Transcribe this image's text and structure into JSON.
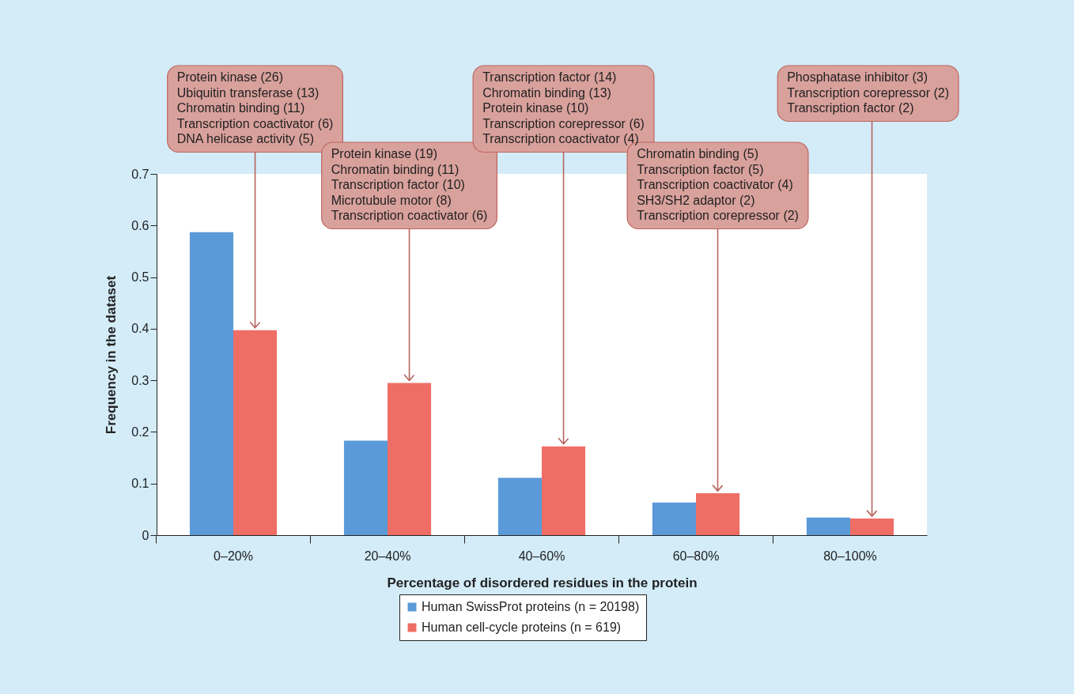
{
  "chart_data": {
    "type": "bar",
    "xlabel": "Percentage of disordered residues in the protein",
    "ylabel": "Frequency in the dataset",
    "categories": [
      "0–20%",
      "20–40%",
      "40–60%",
      "60–80%",
      "80–100%"
    ],
    "series": [
      {
        "name": "Human SwissProt proteins (n = 20198)",
        "color": "#5a9ad8",
        "values": [
          0.587,
          0.183,
          0.111,
          0.063,
          0.034
        ]
      },
      {
        "name": "Human cell-cycle proteins (n = 619)",
        "color": "#ee6e66",
        "values": [
          0.397,
          0.295,
          0.172,
          0.081,
          0.032
        ]
      }
    ],
    "ylim": [
      0,
      0.7
    ],
    "yticks": [
      0,
      0.1,
      0.2,
      0.3,
      0.4,
      0.5,
      0.6,
      0.7
    ],
    "grid": false,
    "legend": "bottom",
    "annotations": [
      "Protein kinase (26)\nUbiquitin transferase (13)\nChromatin binding (11)\nTranscription coactivator (6)\nDNA helicase activity (5)",
      "Protein kinase (19)\nChromatin binding (11)\nTranscription factor (10)\nMicrotubule motor (8)\nTranscription coactivator (6)",
      "Transcription factor (14)\nChromatin binding (13)\nProtein kinase (10)\nTranscription corepressor (6)\nTranscription coactivator (4)",
      "Chromatin binding (5)\nTranscription factor (5)\nTranscription coactivator (4)\nSH3/SH2 adaptor (2)\nTranscription corepressor (2)",
      "Phosphatase inhibitor (3)\nTranscription corepressor (2)\nTranscription factor (2)"
    ]
  }
}
